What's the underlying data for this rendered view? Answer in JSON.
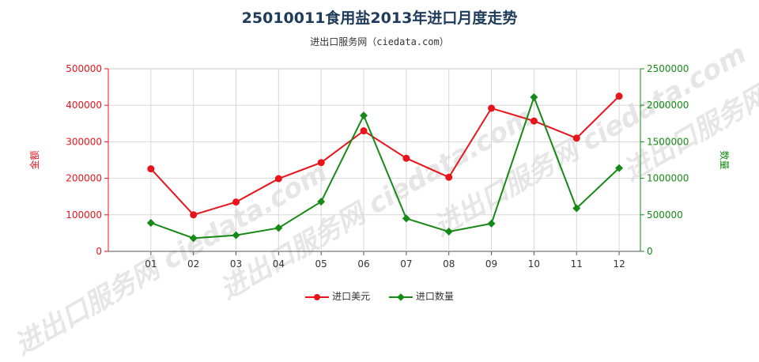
{
  "title": "25010011食用盐2013年进口月度走势",
  "subtitle": "进出口服务网（ciedata.com）",
  "watermark": "进出口服务网 ciedata.com",
  "chart_data": {
    "type": "line",
    "categories": [
      "01",
      "02",
      "03",
      "04",
      "05",
      "06",
      "07",
      "08",
      "09",
      "10",
      "11",
      "12"
    ],
    "series": [
      {
        "name": "进口美元",
        "axis": "left",
        "color": "#e8141b",
        "marker": "circle",
        "values": [
          226000,
          100000,
          135000,
          199000,
          243000,
          330000,
          255000,
          203000,
          392000,
          357000,
          310000,
          425000
        ]
      },
      {
        "name": "进口数量",
        "axis": "right",
        "color": "#168a16",
        "marker": "diamond",
        "values": [
          390000,
          180000,
          220000,
          320000,
          680000,
          1860000,
          450000,
          270000,
          380000,
          2110000,
          590000,
          1140000
        ]
      }
    ],
    "ylabel_left": "金额",
    "ylabel_right": "数量",
    "ylim_left": [
      0,
      500000
    ],
    "ylim_right": [
      0,
      2500000
    ],
    "yticks_left": [
      "0",
      "100000",
      "200000",
      "300000",
      "400000",
      "500000"
    ],
    "yticks_right": [
      "0",
      "500000",
      "1000000",
      "1500000",
      "2000000",
      "2500000"
    ],
    "grid": true,
    "legend_position": "bottom"
  }
}
